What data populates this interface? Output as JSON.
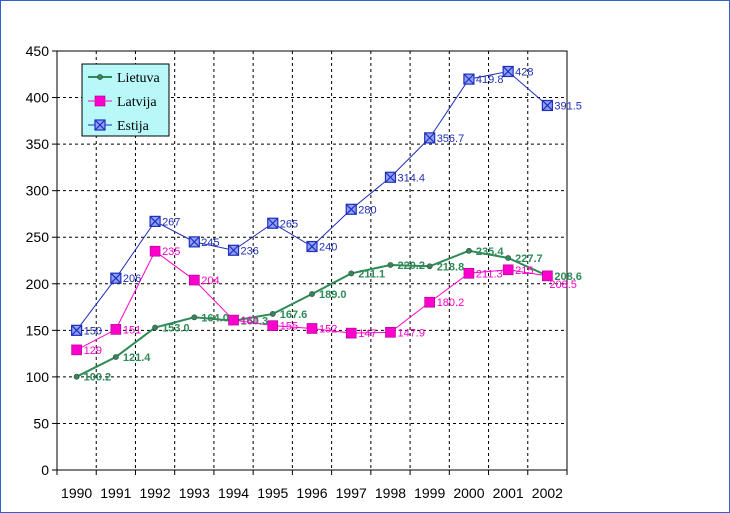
{
  "chart_data": {
    "type": "line",
    "title": "",
    "xlabel": "",
    "ylabel": "",
    "categories": [
      "1990",
      "1991",
      "1992",
      "1993",
      "1994",
      "1995",
      "1996",
      "1997",
      "1998",
      "1999",
      "2000",
      "2001",
      "2002"
    ],
    "ylim": [
      0,
      450
    ],
    "yticks": [
      0,
      50,
      100,
      150,
      200,
      250,
      300,
      350,
      400,
      450
    ],
    "grid": true,
    "legend_position": "top-left",
    "series": [
      {
        "name": "Lietuva",
        "color": "#2e8b57",
        "marker": "dot",
        "values": [
          100.2,
          121.4,
          153.0,
          164.0,
          160.3,
          167.6,
          189.0,
          211.1,
          220.2,
          218.8,
          235.4,
          227.7,
          208.6
        ],
        "labels": [
          "100.2",
          "121.4",
          "153.0",
          "164.0",
          "160.3",
          "167.6",
          "189.0",
          "211.1",
          "220.2",
          "218.8",
          "235.4",
          "227.7",
          "208.6"
        ]
      },
      {
        "name": "Latvija",
        "color": "#ff00cc",
        "marker": "square",
        "values": [
          129,
          151,
          235,
          204,
          161,
          155,
          152,
          147,
          147.9,
          180.2,
          211.3,
          215,
          208.5
        ],
        "labels": [
          "129",
          "151",
          "235",
          "204",
          "161",
          "155",
          "152",
          "147",
          "147.9",
          "180.2",
          "211.3",
          "215",
          "208.5"
        ]
      },
      {
        "name": "Estija",
        "color": "#1f2fb8",
        "marker": "xsquare",
        "values": [
          150,
          206,
          267,
          245,
          236,
          265,
          240,
          280,
          314.4,
          356.7,
          419.8,
          428,
          391.5
        ],
        "labels": [
          "150",
          "206",
          "267",
          "245",
          "236",
          "265",
          "240",
          "280",
          "314.4",
          "356.7",
          "419.8",
          "428",
          "391.5"
        ]
      }
    ]
  }
}
